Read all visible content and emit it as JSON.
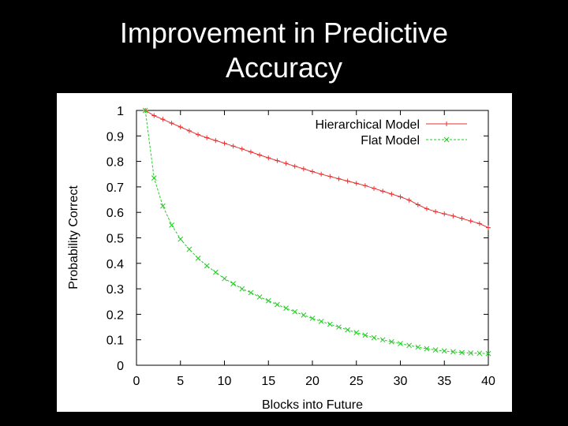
{
  "slide": {
    "title_line1": "Improvement in Predictive",
    "title_line2": "Accuracy"
  },
  "chart_data": {
    "type": "line",
    "title": "",
    "xlabel": "Blocks into Future",
    "ylabel": "Probability Correct",
    "xlim": [
      0,
      40
    ],
    "ylim": [
      0,
      1
    ],
    "xticks": [
      "0",
      "5",
      "10",
      "15",
      "20",
      "25",
      "30",
      "35",
      "40"
    ],
    "yticks": [
      "0",
      "0.1",
      "0.2",
      "0.3",
      "0.4",
      "0.5",
      "0.6",
      "0.7",
      "0.8",
      "0.9",
      "1"
    ],
    "grid": false,
    "legend_position": "top-right",
    "x": [
      1,
      2,
      3,
      4,
      5,
      6,
      7,
      8,
      9,
      10,
      11,
      12,
      13,
      14,
      15,
      16,
      17,
      18,
      19,
      20,
      21,
      22,
      23,
      24,
      25,
      26,
      27,
      28,
      29,
      30,
      31,
      32,
      33,
      34,
      35,
      36,
      37,
      38,
      39,
      40
    ],
    "series": [
      {
        "name": "Hierarchical Model",
        "color": "#e8312f",
        "marker": "plus",
        "dash": "solid",
        "values": [
          1.0,
          0.98,
          0.965,
          0.95,
          0.935,
          0.92,
          0.905,
          0.893,
          0.882,
          0.871,
          0.86,
          0.849,
          0.837,
          0.825,
          0.814,
          0.803,
          0.792,
          0.781,
          0.771,
          0.76,
          0.75,
          0.741,
          0.732,
          0.723,
          0.714,
          0.705,
          0.694,
          0.683,
          0.672,
          0.661,
          0.648,
          0.63,
          0.614,
          0.603,
          0.594,
          0.586,
          0.576,
          0.566,
          0.556,
          0.54
        ]
      },
      {
        "name": "Flat Model",
        "color": "#22cc22",
        "marker": "x",
        "dash": "dashed",
        "values": [
          1.0,
          0.735,
          0.625,
          0.55,
          0.495,
          0.455,
          0.42,
          0.39,
          0.365,
          0.34,
          0.32,
          0.3,
          0.285,
          0.268,
          0.253,
          0.238,
          0.224,
          0.21,
          0.197,
          0.184,
          0.172,
          0.161,
          0.15,
          0.139,
          0.128,
          0.118,
          0.108,
          0.1,
          0.092,
          0.085,
          0.078,
          0.071,
          0.065,
          0.06,
          0.056,
          0.053,
          0.05,
          0.048,
          0.047,
          0.046
        ]
      }
    ]
  }
}
